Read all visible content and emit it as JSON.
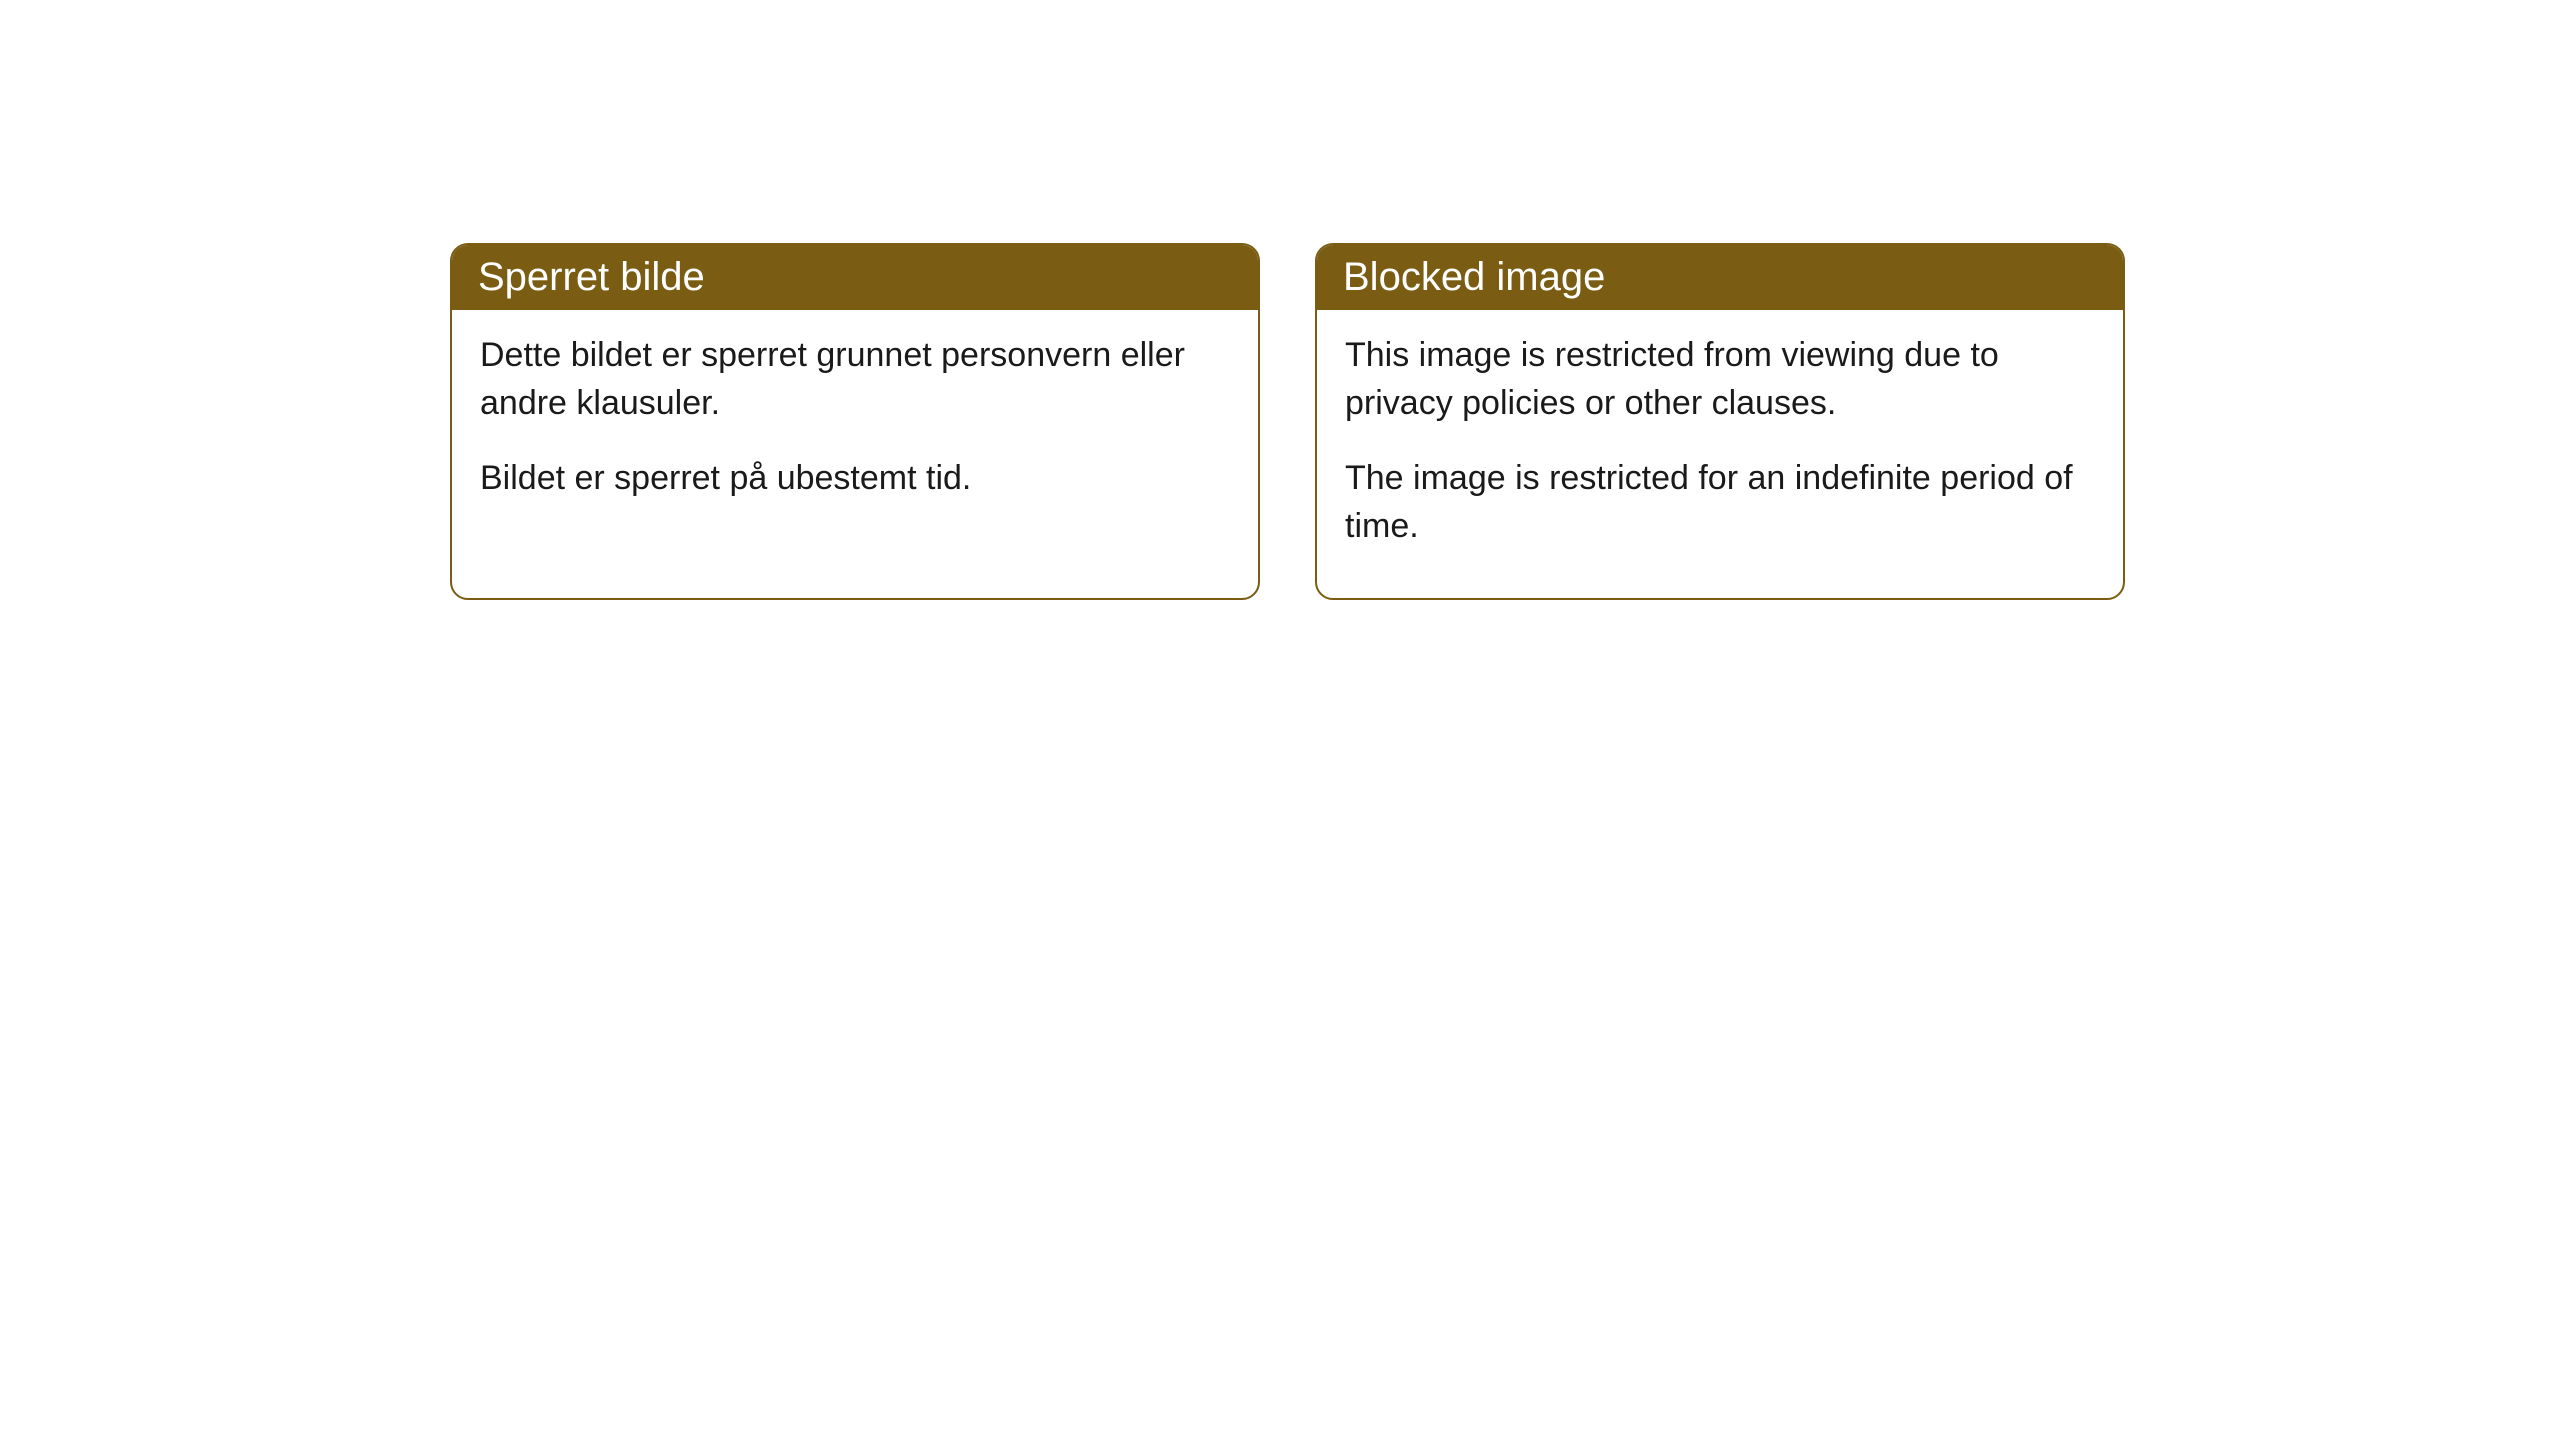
{
  "cards": [
    {
      "title": "Sperret bilde",
      "paragraph1": "Dette bildet er sperret grunnet personvern eller andre klausuler.",
      "paragraph2": "Bildet er sperret på ubestemt tid."
    },
    {
      "title": "Blocked image",
      "paragraph1": "This image is restricted from viewing due to privacy policies or other clauses.",
      "paragraph2": "The image is restricted for an indefinite period of time."
    }
  ],
  "styling": {
    "header_background": "#7a5c13",
    "header_text_color": "#ffffff",
    "card_border_color": "#7a5c13",
    "card_border_radius": 18,
    "card_background": "#ffffff",
    "body_text_color": "#1a1a1a",
    "page_background": "#ffffff",
    "title_fontsize": 40,
    "body_fontsize": 34
  }
}
